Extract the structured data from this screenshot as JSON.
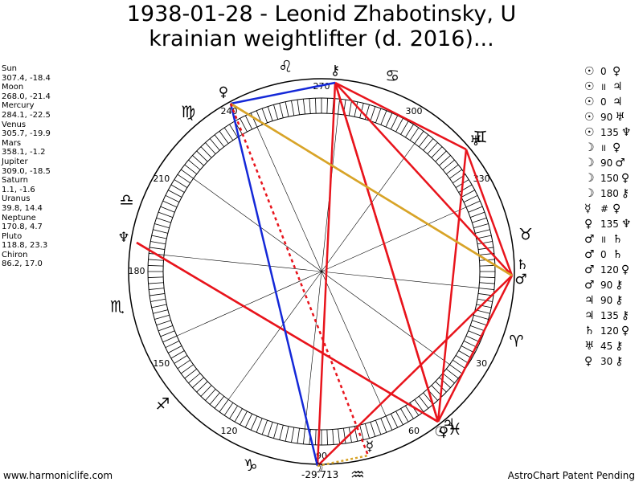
{
  "title": {
    "line1": "1938-01-28 - Leonid Zhabotinsky, U",
    "line2": "krainian weightlifter (d. 2016)..."
  },
  "planet_positions": [
    {
      "name": "Sun",
      "value": "307.4, -18.4"
    },
    {
      "name": "Moon",
      "value": "268.0, -21.4"
    },
    {
      "name": "Mercury",
      "value": "284.1, -22.5"
    },
    {
      "name": "Venus",
      "value": "305.7, -19.9"
    },
    {
      "name": "Mars",
      "value": "358.1, -1.2"
    },
    {
      "name": "Jupiter",
      "value": "309.0, -18.5"
    },
    {
      "name": "Saturn",
      "value": "1.1, -1.6"
    },
    {
      "name": "Uranus",
      "value": "39.8, 14.4"
    },
    {
      "name": "Neptune",
      "value": "170.8, 4.7"
    },
    {
      "name": "Pluto",
      "value": "118.8, 23.3"
    },
    {
      "name": "Chiron",
      "value": "86.2, 17.0"
    }
  ],
  "aspects": [
    {
      "p1": "☉",
      "angle": "0",
      "p2": "♀"
    },
    {
      "p1": "☉",
      "angle": "॥",
      "p2": "♃"
    },
    {
      "p1": "☉",
      "angle": "0",
      "p2": "♃"
    },
    {
      "p1": "☉",
      "angle": "90",
      "p2": "♅"
    },
    {
      "p1": "☉",
      "angle": "135",
      "p2": "♆"
    },
    {
      "p1": "☽",
      "angle": "॥",
      "p2": "♀"
    },
    {
      "p1": "☽",
      "angle": "90",
      "p2": "♂"
    },
    {
      "p1": "☽",
      "angle": "150",
      "p2": "♀"
    },
    {
      "p1": "☽",
      "angle": "180",
      "p2": "⚷"
    },
    {
      "p1": "☿",
      "angle": "#",
      "p2": "♀"
    },
    {
      "p1": "♀",
      "angle": "135",
      "p2": "♆"
    },
    {
      "p1": "♂",
      "angle": "॥",
      "p2": "♄"
    },
    {
      "p1": "♂",
      "angle": "0",
      "p2": "♄"
    },
    {
      "p1": "♂",
      "angle": "120",
      "p2": "♀"
    },
    {
      "p1": "♂",
      "angle": "90",
      "p2": "⚷"
    },
    {
      "p1": "♃",
      "angle": "90",
      "p2": "⚷"
    },
    {
      "p1": "♃",
      "angle": "135",
      "p2": "⚷"
    },
    {
      "p1": "♄",
      "angle": "120",
      "p2": "♀"
    },
    {
      "p1": "♅",
      "angle": "45",
      "p2": "⚷"
    },
    {
      "p1": "♀",
      "angle": "30",
      "p2": "⚷"
    }
  ],
  "wheel": {
    "degree_labels": [
      "90",
      "60",
      "30",
      "330",
      "300",
      "270",
      "240",
      "210",
      "180",
      "150",
      "120"
    ],
    "offset_label": "-29.713",
    "signs": [
      "♈",
      "♉",
      "♊",
      "♋",
      "♌",
      "♍",
      "♎",
      "♏",
      "♐",
      "♑",
      "♒",
      "♓"
    ],
    "planet_glyphs": {
      "sun": "☉",
      "moon": "☽",
      "mercury": "☿",
      "venus": "♀",
      "mars": "♂",
      "jupiter": "♃",
      "saturn": "♄",
      "uranus": "♅",
      "neptune": "♆",
      "pluto": "♀",
      "chiron": "⚷"
    },
    "colors": {
      "red": "#e8141c",
      "blue": "#1428d8",
      "gold": "#d8a428",
      "black": "#000000"
    }
  },
  "footer": {
    "left": "www.harmoniclife.com",
    "right": "AstroChart Patent Pending"
  }
}
